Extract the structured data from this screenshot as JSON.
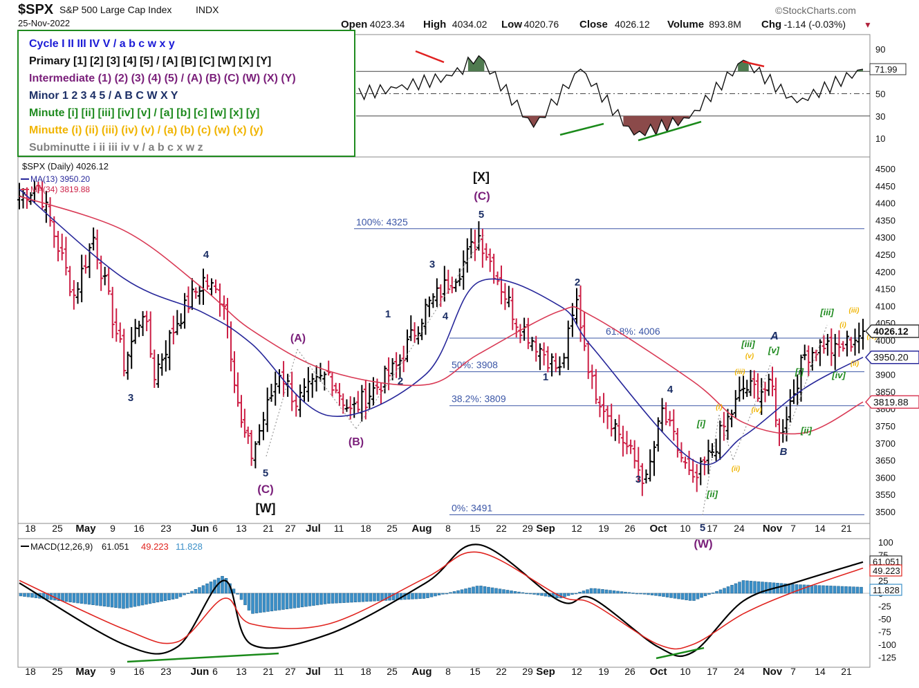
{
  "header": {
    "symbol": "$SPX",
    "name": "S&P 500 Large Cap Index",
    "exchange": "INDX",
    "date": "25-Nov-2022",
    "watermark": "©StockCharts.com",
    "ohlc": [
      {
        "label": "Open",
        "value": "4023.34"
      },
      {
        "label": "High",
        "value": "4034.02"
      },
      {
        "label": "Low",
        "value": "4020.76"
      },
      {
        "label": "Close",
        "value": "4026.12"
      },
      {
        "label": "Volume",
        "value": "893.8M"
      },
      {
        "label": "Chg",
        "value": "-1.14 (-0.03%)"
      }
    ],
    "chg_arrow": "▼"
  },
  "legend_box": {
    "lines": [
      {
        "text": "Cycle I II III IV V / a b c w x y",
        "color": "#1a1ad6"
      },
      {
        "text": "Primary [1] [2] [3] [4] [5] / [A] [B] [C] [W] [X] [Y]",
        "color": "#111111"
      },
      {
        "text": "Intermediate (1) (2) (3) (4) (5) / (A) (B) (C) (W) (X) (Y)",
        "color": "#7a1f7a"
      },
      {
        "text": "Minor 1 2 3 4 5 / A B C W X Y",
        "color": "#1c2f66"
      },
      {
        "text": "Minute [i] [ii] [iii] [iv] [v] / [a] [b] [c] [w] [x] [y]",
        "color": "#1e8a1e"
      },
      {
        "text": "Minutte (i) (ii) (iii) (iv) (v) / (a) (b) (c) (w) (x) (y)",
        "color": "#f0b400"
      },
      {
        "text": "Subminutte i ii iii iv v / a b c x w z",
        "color": "#808080"
      }
    ]
  },
  "rsi_panel": {
    "ticks": [
      "90",
      "70",
      "50",
      "30",
      "10"
    ],
    "last_value": "71.99"
  },
  "price_panel": {
    "legend_title": "$SPX (Daily) 4026.12",
    "ma13_label": "MA(13) 3950.20",
    "ma34_label": "MA(34) 3819.88",
    "ticks": [
      "4500",
      "4450",
      "4400",
      "4350",
      "4300",
      "4250",
      "4200",
      "4150",
      "4100",
      "4050",
      "4000",
      "3950",
      "3900",
      "3850",
      "3800",
      "3750",
      "3700",
      "3650",
      "3600",
      "3550",
      "3500"
    ],
    "last_close_tag": "4026.12",
    "ma13_tag": "3950.20",
    "ma34_tag": "3819.88",
    "fib_levels": [
      {
        "label": "100%: 4325",
        "value": 4325
      },
      {
        "label": "61.8%: 4006",
        "value": 4006
      },
      {
        "label": "50%: 3908",
        "value": 3908
      },
      {
        "label": "38.2%: 3809",
        "value": 3809
      },
      {
        "label": "0%: 3491",
        "value": 3491
      }
    ],
    "x_labels": [
      "18",
      "25",
      "May",
      "9",
      "16",
      "23",
      "Jun",
      "6",
      "13",
      "21",
      "27",
      "Jul",
      "11",
      "18",
      "25",
      "Aug",
      "8",
      "15",
      "22",
      "29",
      "Sep",
      "12",
      "19",
      "26",
      "Oct",
      "10",
      "17",
      "24",
      "Nov",
      "7",
      "14",
      "21"
    ],
    "wave_labels": [
      {
        "text": "3",
        "color": "#1c2f66"
      },
      {
        "text": "4",
        "color": "#1c2f66"
      },
      {
        "text": "5",
        "color": "#1c2f66"
      },
      {
        "text": "(C)",
        "color": "#7a1f7a"
      },
      {
        "text": "[W]",
        "color": "#111111"
      },
      {
        "text": "(A)",
        "color": "#7a1f7a"
      },
      {
        "text": "(B)",
        "color": "#7a1f7a"
      },
      {
        "text": "1",
        "color": "#1c2f66"
      },
      {
        "text": "2",
        "color": "#1c2f66"
      },
      {
        "text": "3",
        "color": "#1c2f66"
      },
      {
        "text": "4",
        "color": "#1c2f66"
      },
      {
        "text": "5",
        "color": "#1c2f66"
      },
      {
        "text": "(C)",
        "color": "#7a1f7a"
      },
      {
        "text": "[X]",
        "color": "#111111"
      },
      {
        "text": "1",
        "color": "#1c2f66"
      },
      {
        "text": "2",
        "color": "#1c2f66"
      },
      {
        "text": "3",
        "color": "#1c2f66"
      },
      {
        "text": "4",
        "color": "#1c2f66"
      },
      {
        "text": "5",
        "color": "#1c2f66"
      },
      {
        "text": "(W)",
        "color": "#7a1f7a"
      },
      {
        "text": "[i]",
        "color": "#1e8a1e"
      },
      {
        "text": "[ii]",
        "color": "#1e8a1e"
      },
      {
        "text": "(i)",
        "color": "#f0b400"
      },
      {
        "text": "(ii)",
        "color": "#f0b400"
      },
      {
        "text": "(iii)",
        "color": "#f0b400"
      },
      {
        "text": "(iv)",
        "color": "#f0b400"
      },
      {
        "text": "(v)",
        "color": "#f0b400"
      },
      {
        "text": "[iii]",
        "color": "#1e8a1e"
      },
      {
        "text": "[v]",
        "color": "#1e8a1e"
      },
      {
        "text": "A",
        "color": "#1c2f66"
      },
      {
        "text": "B",
        "color": "#1c2f66"
      },
      {
        "text": "[i]",
        "color": "#1e8a1e"
      },
      {
        "text": "[ii]",
        "color": "#1e8a1e"
      },
      {
        "text": "[iii]",
        "color": "#1e8a1e"
      },
      {
        "text": "[iv]",
        "color": "#1e8a1e"
      },
      {
        "text": "(i)",
        "color": "#f0b400"
      },
      {
        "text": "(ii)",
        "color": "#f0b400"
      },
      {
        "text": "(iii)",
        "color": "#f0b400"
      },
      {
        "text": "(iv)",
        "color": "#f0b400"
      }
    ]
  },
  "macd_panel": {
    "title": "MACD(12,26,9)",
    "macd_value": "61.051",
    "signal_value": "49.223",
    "hist_value": "11.828",
    "ticks": [
      "100",
      "75",
      "50",
      "25",
      "0",
      "-25",
      "-50",
      "-75",
      "-100",
      "-125"
    ],
    "macd_tag": "61.051",
    "signal_tag": "49.223",
    "hist_tag": "11.828"
  },
  "colors": {
    "up": "#000000",
    "down": "#cc1f45",
    "ma13": "#27279a",
    "ma34": "#d93a55",
    "fib": "#3a55a6",
    "macd_line": "#000000",
    "signal_line": "#e0241f",
    "histogram": "#3a8fc8",
    "rsi_overbought": "#4f7a4f",
    "rsi_oversold": "#8b4a4a",
    "divergence_bull": "#1a8a1a",
    "divergence_bear": "#e02020"
  },
  "chart_data": [
    {
      "type": "line",
      "title": "RSI(14)",
      "ylim": [
        0,
        100
      ],
      "reference_lines": [
        30,
        50,
        70
      ],
      "x": [
        "2022-04-13",
        "2022-04-27",
        "2022-05-12",
        "2022-05-26",
        "2022-06-10",
        "2022-06-24",
        "2022-07-12",
        "2022-07-26",
        "2022-08-09",
        "2022-08-16",
        "2022-08-30",
        "2022-09-13",
        "2022-09-27",
        "2022-10-11",
        "2022-10-25",
        "2022-11-08",
        "2022-11-25"
      ],
      "values": [
        62,
        78,
        85,
        60,
        40,
        44,
        48,
        55,
        66,
        84,
        20,
        72,
        13,
        28,
        80,
        42,
        71.99
      ]
    },
    {
      "type": "candlestick",
      "title": "$SPX (Daily)",
      "ylim": [
        3480,
        4520
      ],
      "x": [
        "2022-04-13",
        "2022-04-20",
        "2022-04-29",
        "2022-05-04",
        "2022-05-12",
        "2022-05-17",
        "2022-05-20",
        "2022-05-26",
        "2022-06-02",
        "2022-06-08",
        "2022-06-13",
        "2022-06-16",
        "2022-06-24",
        "2022-06-28",
        "2022-07-07",
        "2022-07-14",
        "2022-07-26",
        "2022-08-02",
        "2022-08-11",
        "2022-08-16",
        "2022-08-26",
        "2022-09-06",
        "2022-09-12",
        "2022-09-16",
        "2022-09-30",
        "2022-10-04",
        "2022-10-12",
        "2022-10-17",
        "2022-10-25",
        "2022-11-01",
        "2022-11-03",
        "2022-11-10",
        "2022-11-15",
        "2022-11-18",
        "2022-11-25"
      ],
      "values": [
        4420,
        4450,
        4131,
        4300,
        3930,
        4088,
        3901,
        4057,
        4176,
        4115,
        3750,
        3666,
        3911,
        3821,
        3902,
        3790,
        3921,
        4091,
        4207,
        4305,
        4058,
        3908,
        4110,
        3873,
        3585,
        3791,
        3577,
        3677,
        3859,
        3856,
        3719,
        3956,
        3992,
        3965,
        4026.12
      ],
      "series": [
        {
          "name": "MA(13)",
          "x": [
            "2022-04-13",
            "2022-05-12",
            "2022-06-02",
            "2022-06-16",
            "2022-07-07",
            "2022-08-02",
            "2022-08-16",
            "2022-09-06",
            "2022-09-16",
            "2022-10-12",
            "2022-10-25",
            "2022-11-10",
            "2022-11-25"
          ],
          "values": [
            4440,
            4180,
            4080,
            3990,
            3780,
            3900,
            4170,
            4100,
            3980,
            3650,
            3720,
            3860,
            3950.2
          ]
        },
        {
          "name": "MA(34)",
          "x": [
            "2022-04-13",
            "2022-05-12",
            "2022-06-02",
            "2022-06-16",
            "2022-07-07",
            "2022-08-02",
            "2022-08-16",
            "2022-09-06",
            "2022-09-16",
            "2022-10-12",
            "2022-10-25",
            "2022-11-10",
            "2022-11-25"
          ],
          "values": [
            4420,
            4320,
            4150,
            4030,
            3910,
            3870,
            3960,
            4085,
            4070,
            3880,
            3760,
            3730,
            3819.88
          ]
        }
      ]
    },
    {
      "type": "line",
      "title": "MACD(12,26,9)",
      "ylim": [
        -125,
        100
      ],
      "x": [
        "2022-04-13",
        "2022-05-12",
        "2022-05-26",
        "2022-06-08",
        "2022-06-16",
        "2022-07-07",
        "2022-08-02",
        "2022-08-16",
        "2022-09-06",
        "2022-09-16",
        "2022-10-03",
        "2022-10-12",
        "2022-10-25",
        "2022-11-08",
        "2022-11-25"
      ],
      "series": [
        {
          "name": "MACD",
          "values": [
            20,
            -100,
            -105,
            25,
            -100,
            -80,
            20,
            95,
            -15,
            -10,
            -105,
            -115,
            -15,
            22,
            61.051
          ]
        },
        {
          "name": "Signal",
          "values": [
            25,
            -70,
            -95,
            -10,
            -60,
            -60,
            30,
            80,
            -5,
            -20,
            -100,
            -100,
            -40,
            5,
            49.223
          ]
        },
        {
          "name": "Histogram",
          "values": [
            -5,
            -30,
            -10,
            35,
            -40,
            -20,
            -10,
            15,
            -10,
            10,
            -5,
            -15,
            25,
            17,
            11.828
          ]
        }
      ]
    }
  ]
}
